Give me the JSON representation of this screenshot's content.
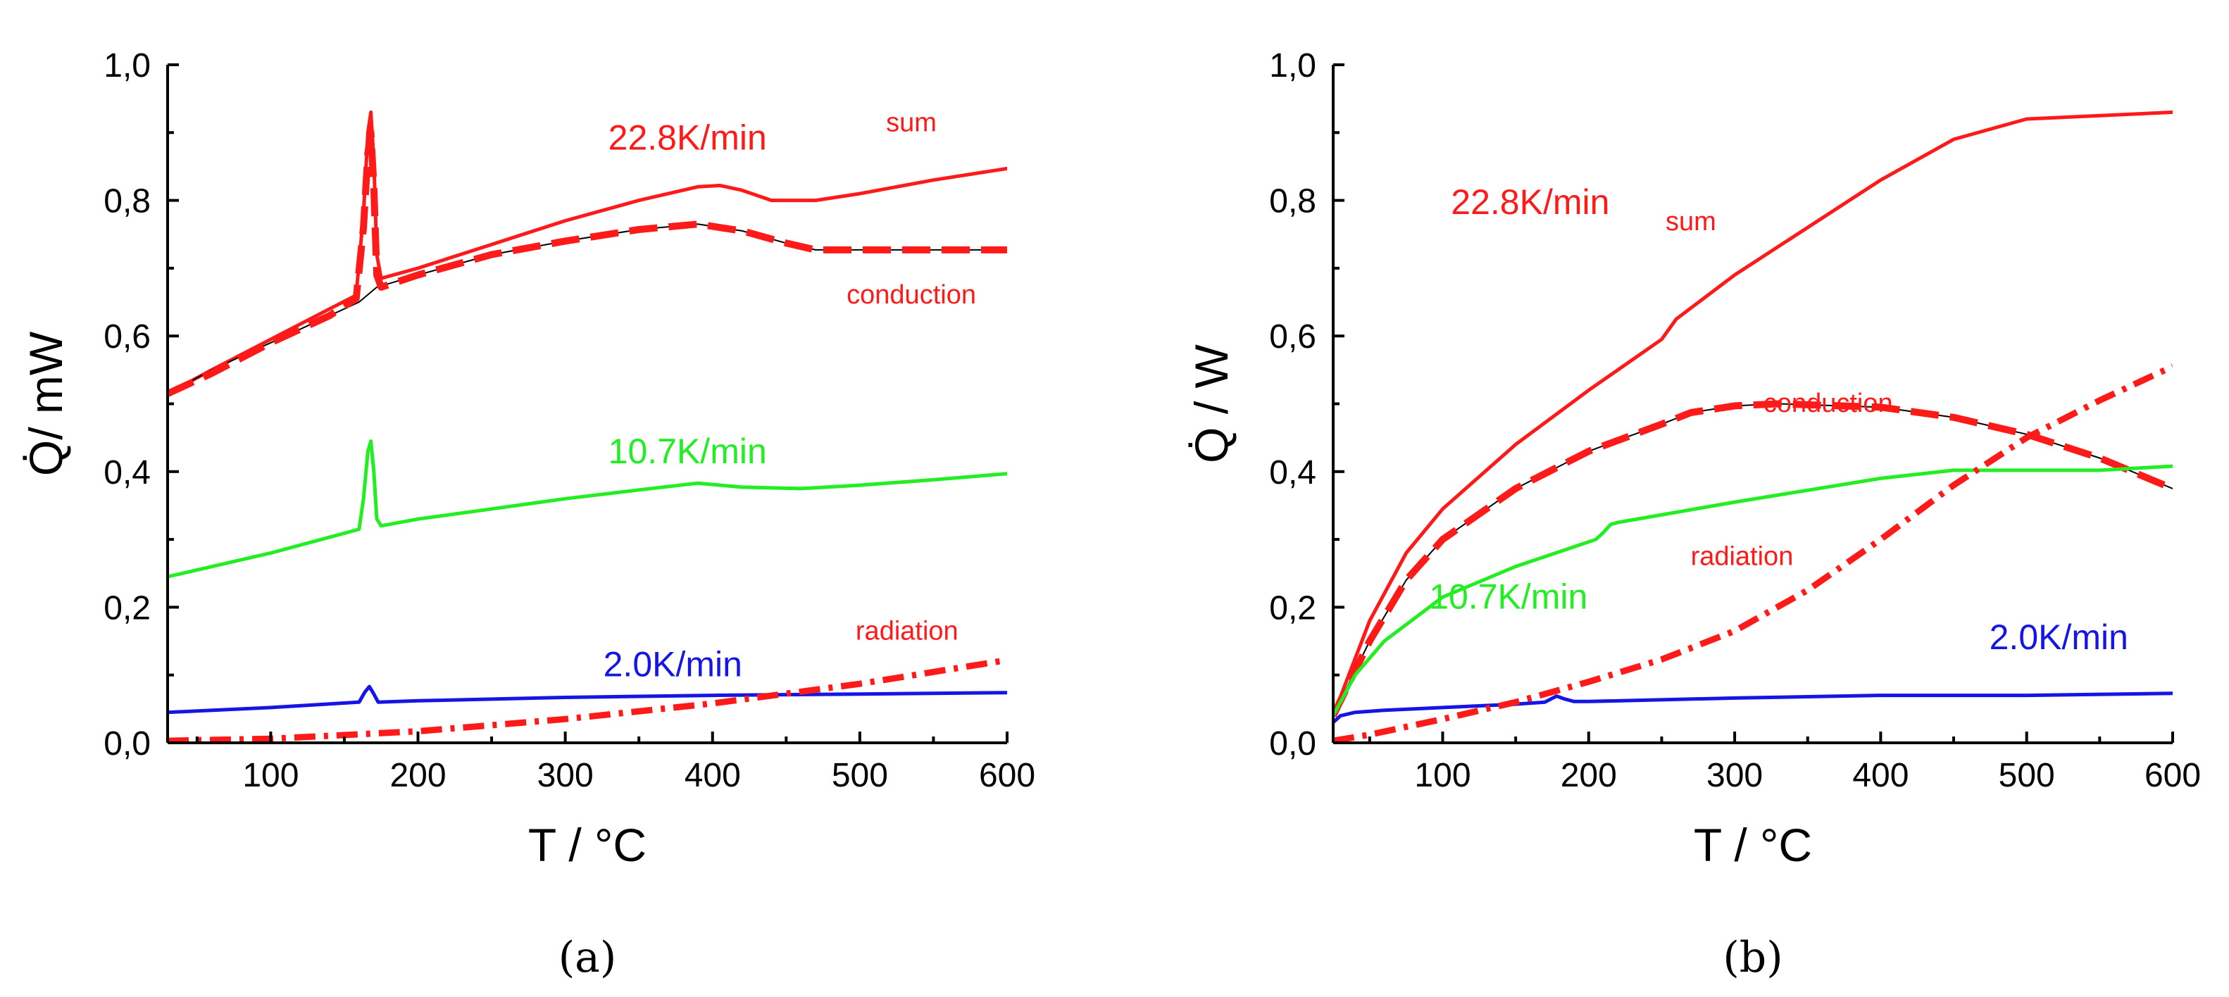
{
  "colors": {
    "red": "#ff1a1a",
    "green": "#22ee22",
    "blue": "#1515e6",
    "black": "#000000"
  },
  "chart_data": [
    {
      "panel": "a",
      "type": "line",
      "panel_label": "(a)",
      "xlabel": "T / °C",
      "ylabel": "Q̇/ mW",
      "xlim": [
        30,
        600
      ],
      "ylim": [
        0,
        1.0
      ],
      "xticks": [
        100,
        200,
        300,
        400,
        500,
        600
      ],
      "xtick_labels": [
        "100",
        "200",
        "300",
        "400",
        "500",
        "600"
      ],
      "yticks": [
        0,
        0.2,
        0.4,
        0.6,
        0.8,
        1.0
      ],
      "ytick_labels": [
        "0,0",
        "0,2",
        "0,4",
        "0,6",
        "0,8",
        "1,0"
      ],
      "series": [
        {
          "name": "22.8K/min sum",
          "color": "red",
          "style": "solid",
          "width": 5,
          "x": [
            30,
            60,
            100,
            140,
            158,
            163,
            166,
            168,
            170,
            172,
            175,
            200,
            250,
            300,
            350,
            390,
            405,
            420,
            440,
            460,
            470,
            500,
            550,
            600
          ],
          "y": [
            0.515,
            0.55,
            0.595,
            0.64,
            0.66,
            0.78,
            0.9,
            0.93,
            0.86,
            0.72,
            0.685,
            0.7,
            0.735,
            0.77,
            0.8,
            0.82,
            0.822,
            0.815,
            0.8,
            0.8,
            0.8,
            0.81,
            0.83,
            0.847
          ]
        },
        {
          "name": "22.8K/min conduction fit",
          "color": "black",
          "style": "solid",
          "width": 2,
          "x": [
            30,
            60,
            100,
            140,
            160,
            172,
            200,
            250,
            300,
            350,
            390,
            420,
            450,
            470,
            500,
            550,
            600
          ],
          "y": [
            0.515,
            0.55,
            0.59,
            0.63,
            0.65,
            0.672,
            0.69,
            0.72,
            0.74,
            0.757,
            0.765,
            0.755,
            0.737,
            0.727,
            0.727,
            0.727,
            0.727
          ]
        },
        {
          "name": "22.8K/min conduction",
          "color": "red",
          "style": "dashed",
          "width": 10,
          "x": [
            30,
            60,
            100,
            140,
            158,
            163,
            166,
            168,
            170,
            172,
            175,
            200,
            250,
            300,
            350,
            390,
            420,
            450,
            470,
            500,
            550,
            600
          ],
          "y": [
            0.515,
            0.545,
            0.59,
            0.63,
            0.655,
            0.76,
            0.87,
            0.9,
            0.82,
            0.69,
            0.672,
            0.69,
            0.72,
            0.74,
            0.757,
            0.765,
            0.755,
            0.737,
            0.727,
            0.727,
            0.727,
            0.727
          ]
        },
        {
          "name": "10.7K/min",
          "color": "green",
          "style": "solid",
          "width": 5,
          "x": [
            30,
            100,
            160,
            163,
            166,
            168,
            170,
            172,
            175,
            200,
            250,
            300,
            350,
            390,
            420,
            460,
            500,
            550,
            600
          ],
          "y": [
            0.245,
            0.28,
            0.315,
            0.36,
            0.43,
            0.445,
            0.4,
            0.33,
            0.32,
            0.33,
            0.345,
            0.36,
            0.373,
            0.383,
            0.377,
            0.375,
            0.38,
            0.388,
            0.397
          ]
        },
        {
          "name": "2.0K/min",
          "color": "blue",
          "style": "solid",
          "width": 5,
          "x": [
            30,
            100,
            160,
            164,
            167,
            170,
            173,
            200,
            300,
            400,
            500,
            600
          ],
          "y": [
            0.045,
            0.052,
            0.06,
            0.075,
            0.083,
            0.072,
            0.06,
            0.062,
            0.067,
            0.07,
            0.072,
            0.074
          ],
          "note": ""
        },
        {
          "name": "radiation",
          "color": "red",
          "style": "dashdot",
          "width": 9,
          "x": [
            30,
            100,
            200,
            300,
            400,
            500,
            600
          ],
          "y": [
            0.003,
            0.006,
            0.017,
            0.035,
            0.058,
            0.087,
            0.122
          ]
        }
      ],
      "annotations": [
        {
          "text": "22.8K/min",
          "color": "red",
          "x": 383,
          "y": 0.875,
          "size": "large"
        },
        {
          "text": "sum",
          "color": "red",
          "x": 535,
          "y": 0.902,
          "size": "small"
        },
        {
          "text": "conduction",
          "color": "red",
          "x": 535,
          "y": 0.648,
          "size": "small"
        },
        {
          "text": "10.7K/min",
          "color": "green",
          "x": 383,
          "y": 0.412,
          "size": "large"
        },
        {
          "text": "radiation",
          "color": "red",
          "x": 532,
          "y": 0.152,
          "size": "small"
        },
        {
          "text": "2.0K/min",
          "color": "blue",
          "x": 373,
          "y": 0.098,
          "size": "large"
        }
      ]
    },
    {
      "panel": "b",
      "type": "line",
      "panel_label": "(b)",
      "xlabel": "T / °C",
      "ylabel": "Q̇ / W",
      "xlim": [
        25,
        600
      ],
      "ylim": [
        0,
        1.0
      ],
      "xticks": [
        100,
        200,
        300,
        400,
        500,
        600
      ],
      "xtick_labels": [
        "100",
        "200",
        "300",
        "400",
        "500",
        "600"
      ],
      "yticks": [
        0,
        0.2,
        0.4,
        0.6,
        0.8,
        1.0
      ],
      "ytick_labels": [
        "0,0",
        "0,2",
        "0,4",
        "0,6",
        "0,8",
        "1,0"
      ],
      "series": [
        {
          "name": "22.8K/min sum",
          "color": "red",
          "style": "solid",
          "width": 5,
          "x": [
            25,
            50,
            75,
            100,
            150,
            200,
            250,
            260,
            300,
            350,
            400,
            450,
            500,
            550,
            600
          ],
          "y": [
            0.04,
            0.18,
            0.28,
            0.345,
            0.44,
            0.52,
            0.595,
            0.625,
            0.69,
            0.76,
            0.83,
            0.89,
            0.92,
            0.925,
            0.93
          ]
        },
        {
          "name": "22.8K/min conduction fit",
          "color": "black",
          "style": "solid",
          "width": 2,
          "x": [
            25,
            50,
            75,
            100,
            150,
            200,
            250,
            270,
            300,
            330,
            400,
            450,
            500,
            550,
            600
          ],
          "y": [
            0.04,
            0.15,
            0.24,
            0.3,
            0.375,
            0.43,
            0.47,
            0.487,
            0.497,
            0.5,
            0.495,
            0.48,
            0.455,
            0.42,
            0.375
          ]
        },
        {
          "name": "22.8K/min conduction",
          "color": "red",
          "style": "dashed",
          "width": 10,
          "x": [
            25,
            50,
            75,
            100,
            150,
            200,
            250,
            270,
            300,
            330,
            400,
            450,
            500,
            550,
            600
          ],
          "y": [
            0.04,
            0.15,
            0.24,
            0.3,
            0.375,
            0.43,
            0.47,
            0.487,
            0.497,
            0.5,
            0.495,
            0.48,
            0.455,
            0.42,
            0.375
          ]
        },
        {
          "name": "10.7K/min",
          "color": "green",
          "style": "solid",
          "width": 5,
          "x": [
            25,
            40,
            60,
            100,
            150,
            205,
            210,
            215,
            220,
            300,
            400,
            450,
            500,
            550,
            600
          ],
          "y": [
            0.04,
            0.1,
            0.15,
            0.215,
            0.26,
            0.3,
            0.31,
            0.322,
            0.325,
            0.355,
            0.39,
            0.402,
            0.402,
            0.402,
            0.408
          ]
        },
        {
          "name": "2.0K/min",
          "color": "blue",
          "style": "solid",
          "width": 5,
          "x": [
            25,
            30,
            40,
            60,
            100,
            150,
            170,
            178,
            183,
            190,
            200,
            300,
            400,
            500,
            600
          ],
          "y": [
            0.03,
            0.04,
            0.045,
            0.048,
            0.052,
            0.057,
            0.06,
            0.069,
            0.065,
            0.061,
            0.061,
            0.066,
            0.07,
            0.07,
            0.073
          ]
        },
        {
          "name": "radiation",
          "color": "red",
          "style": "dashdot",
          "width": 9,
          "x": [
            25,
            50,
            100,
            150,
            200,
            250,
            300,
            350,
            400,
            450,
            500,
            550,
            600
          ],
          "y": [
            0.003,
            0.012,
            0.035,
            0.06,
            0.09,
            0.123,
            0.165,
            0.225,
            0.3,
            0.38,
            0.45,
            0.505,
            0.555
          ]
        }
      ],
      "annotations": [
        {
          "text": "22.8K/min",
          "color": "red",
          "x": 160,
          "y": 0.78,
          "size": "large"
        },
        {
          "text": "sum",
          "color": "red",
          "x": 270,
          "y": 0.756,
          "size": "small"
        },
        {
          "text": "conduction",
          "color": "red",
          "x": 364,
          "y": 0.488,
          "size": "small"
        },
        {
          "text": "radiation",
          "color": "red",
          "x": 305,
          "y": 0.262,
          "size": "small"
        },
        {
          "text": "10.7K/min",
          "color": "green",
          "x": 145,
          "y": 0.198,
          "size": "large"
        },
        {
          "text": "2.0K/min",
          "color": "blue",
          "x": 522,
          "y": 0.138,
          "size": "large"
        }
      ]
    }
  ]
}
